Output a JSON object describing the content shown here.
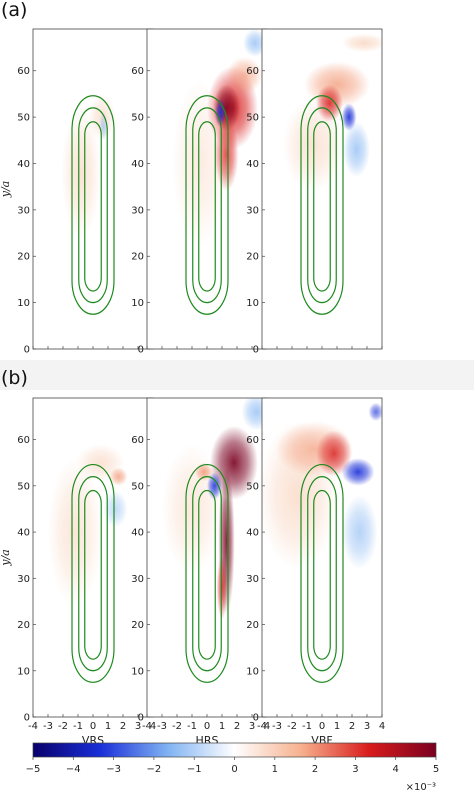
{
  "panels": [
    {
      "label": "(a)",
      "plots": [
        "VRS",
        "HRS",
        "VBF"
      ],
      "show_xlabels": false
    },
    {
      "label": "(b)",
      "plots": [
        "VRS",
        "HRS",
        "VBF"
      ],
      "show_xlabels": true
    }
  ],
  "chart_data": {
    "type": "heatmap",
    "ylabel": "y/a",
    "xlim": [
      -4,
      4
    ],
    "ylim": [
      0,
      69
    ],
    "xticks": [
      -4,
      -3,
      -2,
      -1,
      0,
      1,
      2,
      3,
      4
    ],
    "yticks": [
      0,
      10,
      20,
      30,
      40,
      50,
      60
    ],
    "subplot_labels": [
      "VRS",
      "HRS",
      "VBF"
    ],
    "colorbar": {
      "min": -5,
      "max": 5,
      "ticks": [
        -5,
        -4,
        -3,
        -2,
        -1,
        0,
        1,
        2,
        3,
        4,
        5
      ],
      "multiplier": "×10⁻³",
      "colormap": [
        "#08006b",
        "#1a2fd8",
        "#7fb2f2",
        "#ffffff",
        "#f6b08d",
        "#d81c1c",
        "#7a0020"
      ]
    },
    "contours": {
      "color": "#1e8a1e",
      "shape": "stadium",
      "center_x": 0,
      "levels": [
        {
          "half_width": 1.4,
          "y_bottom": 7.5,
          "y_top": 54.6
        },
        {
          "half_width": 0.95,
          "y_bottom": 10.0,
          "y_top": 52.0
        },
        {
          "half_width": 0.55,
          "y_bottom": 12.5,
          "y_top": 49.0
        }
      ]
    }
  }
}
